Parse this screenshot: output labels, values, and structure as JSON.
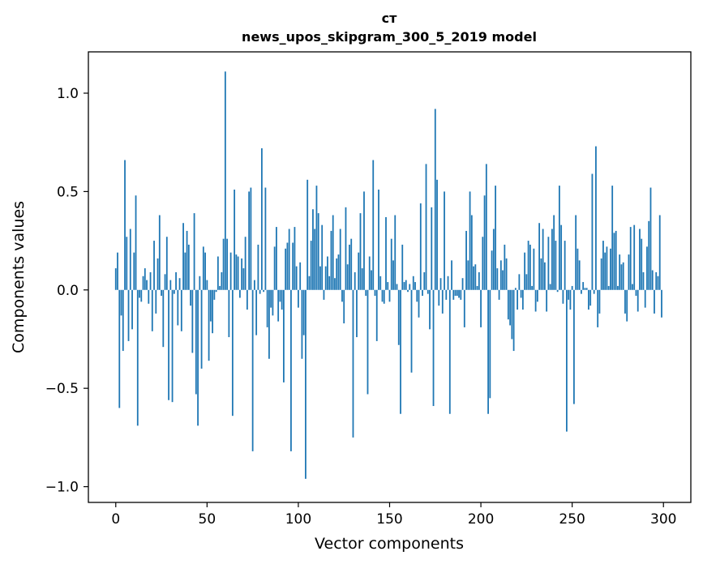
{
  "chart_data": {
    "type": "bar",
    "title_line1": "ст",
    "title_line2": "news_upos_skipgram_300_5_2019 model",
    "xlabel": "Vector components",
    "ylabel": "Components values",
    "xlim": [
      -15,
      315
    ],
    "ylim": [
      -1.08,
      1.21
    ],
    "xticks": [
      0,
      50,
      100,
      150,
      200,
      250,
      300
    ],
    "xtick_labels": [
      "0",
      "50",
      "100",
      "150",
      "200",
      "250",
      "300"
    ],
    "yticks": [
      -1.0,
      -0.5,
      0.0,
      0.5,
      1.0
    ],
    "ytick_labels": [
      "−1.0",
      "−0.5",
      "0.0",
      "0.5",
      "1.0"
    ],
    "bar_color": "#1f77b4",
    "values": [
      0.11,
      0.19,
      -0.6,
      -0.13,
      -0.31,
      0.66,
      0.27,
      -0.26,
      0.31,
      -0.2,
      0.19,
      0.48,
      -0.69,
      -0.04,
      -0.06,
      0.07,
      0.11,
      0.05,
      -0.07,
      0.09,
      -0.21,
      0.25,
      -0.12,
      0.16,
      0.38,
      -0.03,
      -0.29,
      0.08,
      0.27,
      -0.56,
      0.05,
      -0.57,
      -0.02,
      0.09,
      -0.18,
      0.06,
      -0.21,
      0.34,
      0.19,
      0.3,
      0.23,
      -0.08,
      -0.32,
      0.39,
      -0.53,
      -0.69,
      0.07,
      -0.4,
      0.22,
      0.19,
      0.05,
      -0.36,
      -0.16,
      -0.22,
      -0.05,
      -0.01,
      0.17,
      0.02,
      0.09,
      0.26,
      1.11,
      0.26,
      -0.24,
      0.19,
      -0.64,
      0.51,
      0.18,
      0.17,
      -0.04,
      0.16,
      0.11,
      0.27,
      -0.1,
      0.5,
      0.52,
      -0.82,
      0.05,
      -0.23,
      0.23,
      -0.02,
      0.72,
      -0.01,
      0.52,
      -0.19,
      -0.35,
      -0.09,
      -0.13,
      0.22,
      0.32,
      -0.16,
      -0.06,
      -0.1,
      -0.47,
      0.21,
      0.24,
      0.31,
      -0.82,
      0.24,
      0.32,
      0.12,
      -0.09,
      0.14,
      -0.35,
      -0.23,
      -0.96,
      0.56,
      0.07,
      0.25,
      0.41,
      0.31,
      0.53,
      0.39,
      0.12,
      0.33,
      -0.05,
      0.12,
      0.17,
      0.07,
      0.3,
      0.38,
      0.06,
      0.16,
      0.18,
      0.31,
      -0.06,
      -0.17,
      0.42,
      0.13,
      0.23,
      0.26,
      -0.75,
      0.09,
      -0.24,
      0.19,
      0.39,
      0.11,
      0.5,
      -0.03,
      -0.53,
      0.17,
      0.1,
      0.66,
      -0.03,
      -0.26,
      0.51,
      0.07,
      -0.06,
      -0.07,
      0.37,
      0.04,
      -0.06,
      0.26,
      0.15,
      0.38,
      0.03,
      -0.28,
      -0.63,
      0.23,
      0.04,
      0.05,
      -0.01,
      0.03,
      -0.42,
      0.07,
      0.04,
      -0.06,
      -0.14,
      0.44,
      -0.03,
      0.09,
      0.64,
      -0.02,
      -0.2,
      0.42,
      -0.59,
      0.92,
      0.56,
      -0.08,
      0.06,
      -0.12,
      0.5,
      -0.05,
      0.07,
      -0.63,
      0.15,
      -0.05,
      -0.03,
      -0.03,
      -0.04,
      -0.05,
      0.06,
      -0.19,
      0.3,
      0.15,
      0.5,
      0.38,
      0.12,
      0.13,
      0.02,
      0.09,
      -0.19,
      0.27,
      0.48,
      0.64,
      -0.63,
      -0.55,
      0.2,
      0.31,
      0.53,
      0.11,
      -0.05,
      0.15,
      0.1,
      0.23,
      0.16,
      -0.15,
      -0.18,
      -0.25,
      -0.31,
      0.01,
      -0.1,
      0.08,
      -0.04,
      -0.1,
      0.19,
      0.08,
      0.25,
      0.23,
      0.02,
      0.21,
      -0.11,
      -0.06,
      0.34,
      0.16,
      0.31,
      0.14,
      -0.11,
      0.27,
      0.03,
      0.31,
      0.38,
      0.25,
      -0.01,
      0.53,
      0.33,
      -0.07,
      0.25,
      -0.72,
      -0.05,
      -0.1,
      0.02,
      -0.58,
      0.38,
      0.21,
      0.15,
      -0.02,
      0.04,
      0.01,
      0.01,
      -0.1,
      -0.08,
      0.59,
      -0.02,
      0.73,
      -0.19,
      -0.12,
      0.16,
      0.25,
      0.19,
      0.22,
      0.02,
      0.21,
      0.53,
      0.29,
      0.3,
      0.02,
      0.18,
      0.13,
      0.14,
      -0.12,
      -0.16,
      0.18,
      0.32,
      0.03,
      0.33,
      -0.03,
      -0.11,
      0.31,
      0.26,
      0.09,
      -0.09,
      0.22,
      0.35,
      0.52,
      0.1,
      -0.12,
      0.09,
      0.07,
      0.38,
      -0.14
    ]
  }
}
